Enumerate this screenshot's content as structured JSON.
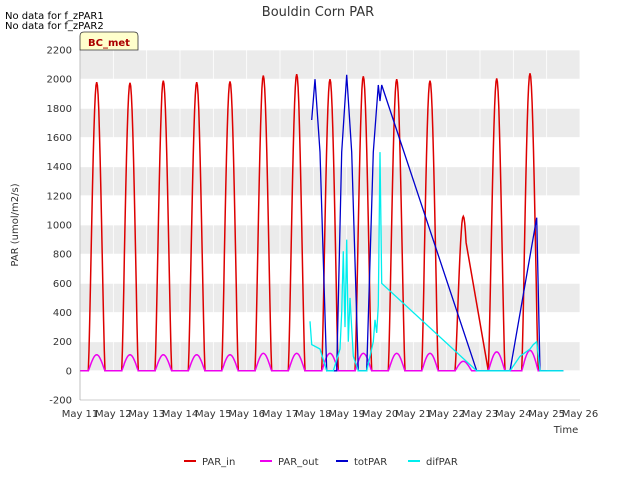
{
  "notes": [
    "No data for f_zPAR1",
    "No data for f_zPAR2"
  ],
  "badge": "BC_met",
  "chart_data": {
    "type": "line",
    "title": "Bouldin Corn PAR",
    "xlabel": "Time",
    "ylabel": "PAR (umol/m2/s)",
    "ylim": [
      -200,
      2200
    ],
    "xlim": [
      11,
      26
    ],
    "yticks": [
      -200,
      0,
      200,
      400,
      600,
      800,
      1000,
      1200,
      1400,
      1600,
      1800,
      2000,
      2200
    ],
    "xticks": [
      {
        "day": 11,
        "label": "May 11"
      },
      {
        "day": 12,
        "label": "May 12"
      },
      {
        "day": 13,
        "label": "May 13"
      },
      {
        "day": 14,
        "label": "May 14"
      },
      {
        "day": 15,
        "label": "May 15"
      },
      {
        "day": 16,
        "label": "May 16"
      },
      {
        "day": 17,
        "label": "May 17"
      },
      {
        "day": 18,
        "label": "May 18"
      },
      {
        "day": 19,
        "label": "May 19"
      },
      {
        "day": 20,
        "label": "May 20"
      },
      {
        "day": 21,
        "label": "May 21"
      },
      {
        "day": 22,
        "label": "May 22"
      },
      {
        "day": 23,
        "label": "May 23"
      },
      {
        "day": 24,
        "label": "May 24"
      },
      {
        "day": 25,
        "label": "May 25"
      },
      {
        "day": 26,
        "label": "May 26"
      }
    ],
    "grid": true,
    "legend_position": "bottom",
    "series": [
      {
        "name": "PAR_in",
        "color": "#dd0000",
        "peaks": [
          1980,
          1975,
          1990,
          1980,
          1985,
          2025,
          2035,
          2000,
          2020,
          2000,
          1990,
          1060,
          2005,
          2040
        ],
        "days": [
          11,
          12,
          13,
          14,
          15,
          16,
          17,
          18,
          19,
          20,
          21,
          22,
          23,
          24
        ],
        "note": "Day 22 peak 1060; gap from day 22.9 to 23.1"
      },
      {
        "name": "PAR_out",
        "color": "#ee00ee",
        "peaks": [
          110,
          110,
          110,
          110,
          110,
          120,
          120,
          120,
          120,
          120,
          120,
          65,
          130,
          140
        ],
        "days": [
          11,
          12,
          13,
          14,
          15,
          16,
          17,
          18,
          19,
          20,
          21,
          22,
          23,
          24
        ]
      },
      {
        "name": "totPAR",
        "color": "#0000cc",
        "points": [
          [
            17.95,
            1720
          ],
          [
            18.05,
            2000
          ],
          [
            18.2,
            1500
          ],
          [
            18.4,
            0
          ],
          [
            18.7,
            0
          ],
          [
            18.85,
            1500
          ],
          [
            19.0,
            2030
          ],
          [
            19.15,
            1500
          ],
          [
            19.35,
            0
          ],
          [
            19.6,
            0
          ],
          [
            19.8,
            1500
          ],
          [
            19.95,
            1960
          ],
          [
            20.0,
            1850
          ],
          [
            20.05,
            1960
          ],
          [
            22.9,
            0
          ],
          [
            22.95,
            0
          ],
          [
            23.9,
            0
          ],
          [
            24.7,
            1050
          ],
          [
            24.8,
            0
          ],
          [
            24.9,
            0
          ],
          [
            25.0,
            0
          ],
          [
            25.5,
            0
          ]
        ]
      },
      {
        "name": "difPAR",
        "color": "#00eeee",
        "points": [
          [
            17.9,
            340
          ],
          [
            17.95,
            180
          ],
          [
            18.2,
            150
          ],
          [
            18.4,
            0
          ],
          [
            18.6,
            0
          ],
          [
            18.8,
            150
          ],
          [
            18.85,
            400
          ],
          [
            18.9,
            820
          ],
          [
            18.95,
            300
          ],
          [
            19.0,
            900
          ],
          [
            19.05,
            200
          ],
          [
            19.1,
            500
          ],
          [
            19.2,
            100
          ],
          [
            19.35,
            0
          ],
          [
            19.6,
            0
          ],
          [
            19.8,
            200
          ],
          [
            19.85,
            350
          ],
          [
            19.9,
            260
          ],
          [
            19.95,
            450
          ],
          [
            20.0,
            1500
          ],
          [
            20.05,
            600
          ],
          [
            22.9,
            0
          ],
          [
            22.95,
            0
          ],
          [
            23.9,
            0
          ],
          [
            24.2,
            100
          ],
          [
            24.5,
            150
          ],
          [
            24.6,
            180
          ],
          [
            24.7,
            200
          ],
          [
            24.8,
            0
          ],
          [
            25.5,
            0
          ]
        ]
      }
    ]
  },
  "legend": [
    {
      "label": "PAR_in",
      "color": "#dd0000"
    },
    {
      "label": "PAR_out",
      "color": "#ee00ee"
    },
    {
      "label": "totPAR",
      "color": "#0000cc"
    },
    {
      "label": "difPAR",
      "color": "#00eeee"
    }
  ]
}
